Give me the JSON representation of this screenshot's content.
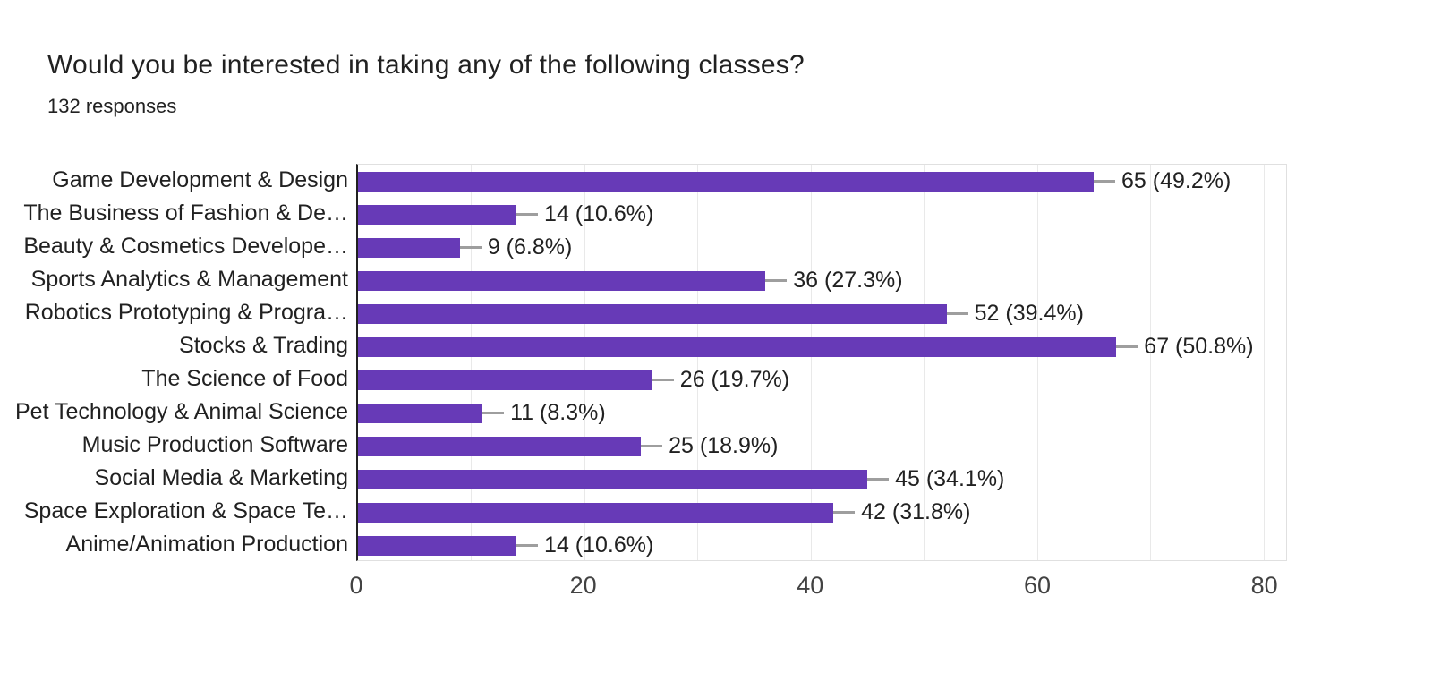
{
  "header": {
    "title": "Would you be interested in taking any of the following classes?",
    "subtitle": "132 responses"
  },
  "chart_data": {
    "type": "bar",
    "orientation": "horizontal",
    "title": "Would you be interested in taking any of the following classes?",
    "subtitle": "132 responses",
    "total_responses": 132,
    "categories": [
      "Game Development & Design",
      "The Business of Fashion & De…",
      "Beauty & Cosmetics Develope…",
      "Sports Analytics & Management",
      "Robotics Prototyping & Progra…",
      "Stocks & Trading",
      "The Science of Food",
      "Pet Technology & Animal Science",
      "Music Production Software",
      "Social Media & Marketing",
      "Space Exploration & Space Te…",
      "Anime/Animation Production"
    ],
    "values": [
      65,
      14,
      9,
      36,
      52,
      67,
      26,
      11,
      25,
      45,
      42,
      14
    ],
    "value_labels": [
      "65 (49.2%)",
      "14 (10.6%)",
      "9 (6.8%)",
      "36 (27.3%)",
      "52 (39.4%)",
      "67 (50.8%)",
      "26 (19.7%)",
      "11 (8.3%)",
      "25 (18.9%)",
      "45 (34.1%)",
      "42 (31.8%)",
      "14 (10.6%)"
    ],
    "xlabel": "",
    "ylabel": "",
    "x_ticks": [
      "0",
      "20",
      "40",
      "60",
      "80"
    ],
    "x_tick_values": [
      0,
      20,
      40,
      60,
      80
    ],
    "gridline_values": [
      10,
      20,
      30,
      40,
      50,
      60,
      70,
      80
    ],
    "xlim": [
      0,
      82
    ],
    "grid": true,
    "legend": "none",
    "colors": {
      "bar": "#673ab7",
      "axis_line": "#212121",
      "gridline": "#e9e9e9",
      "plot_border": "#e0e0e0",
      "connector": "#9e9e9e",
      "tick_label": "#424242",
      "text": "#212121"
    }
  }
}
